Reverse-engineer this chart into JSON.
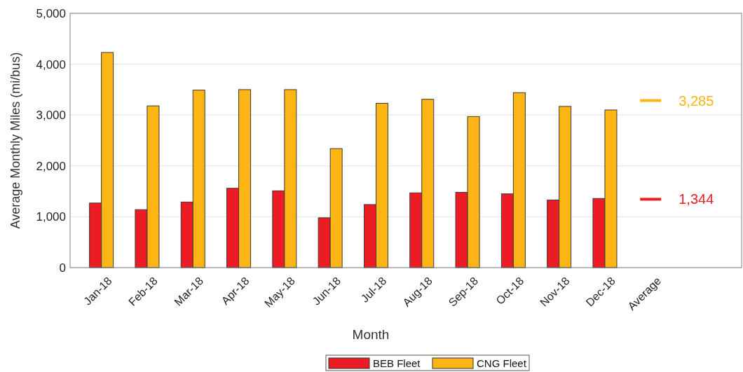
{
  "chart_data": {
    "type": "bar",
    "xlabel": "Month",
    "ylabel": "Average Monthly Miles (mi/bus)",
    "categories": [
      "Jan-18",
      "Feb-18",
      "Mar-18",
      "Apr-18",
      "May-18",
      "Jun-18",
      "Jul-18",
      "Aug-18",
      "Sep-18",
      "Oct-18",
      "Nov-18",
      "Dec-18",
      "Average"
    ],
    "series": [
      {
        "name": "BEB Fleet",
        "color": "#ed1c24",
        "values": [
          1270,
          1140,
          1290,
          1560,
          1510,
          980,
          1240,
          1470,
          1480,
          1450,
          1330,
          1360,
          null
        ]
      },
      {
        "name": "CNG Fleet",
        "color": "#fdb515",
        "values": [
          4230,
          3180,
          3490,
          3500,
          3500,
          2340,
          3230,
          3310,
          2970,
          3440,
          3170,
          3100,
          null
        ]
      }
    ],
    "annotations": [
      "1,344",
      "3,285"
    ],
    "ylim": [
      0,
      5000
    ],
    "yticks": [
      {
        "value": 0,
        "label": "0"
      },
      {
        "value": 1000,
        "label": "1,000"
      },
      {
        "value": 2000,
        "label": "2,000"
      },
      {
        "value": 3000,
        "label": "3,000"
      },
      {
        "value": 4000,
        "label": "4,000"
      },
      {
        "value": 5000,
        "label": "5,000"
      }
    ],
    "grid": "y",
    "legend": "bottom"
  }
}
